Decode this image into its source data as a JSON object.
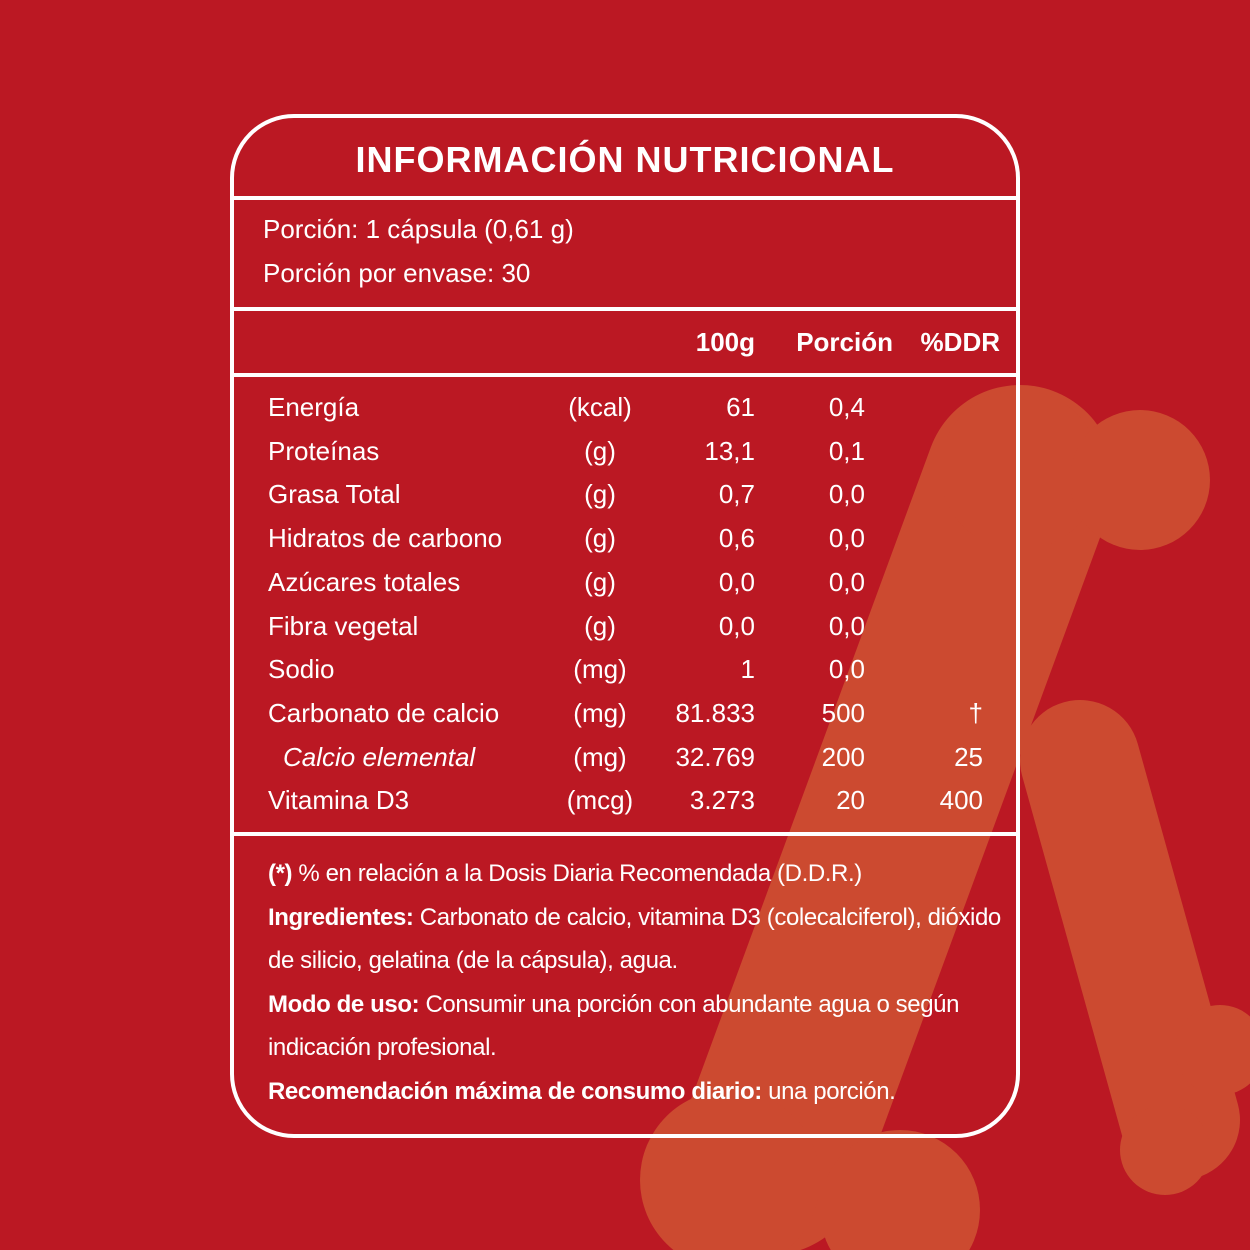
{
  "header": {
    "title": "INFORMACIÓN NUTRICIONAL"
  },
  "serving": {
    "lines": [
      "Porción: 1 cápsula (0,61 g)",
      "Porción por envase: 30"
    ]
  },
  "table": {
    "columns": [
      "100g",
      "Porción",
      "%DDR"
    ],
    "rows": [
      {
        "name": "Energía",
        "unit": "(kcal)",
        "per100g": "61",
        "portion": "0,4"
      },
      {
        "name": "Proteínas",
        "unit": "(g)",
        "per100g": "13,1",
        "portion": "0,1"
      },
      {
        "name": "Grasa Total",
        "unit": "(g)",
        "per100g": "0,7",
        "portion": "0,0"
      },
      {
        "name": "Hidratos de carbono",
        "unit": "(g)",
        "per100g": "0,6",
        "portion": "0,0"
      },
      {
        "name": "Azúcares totales",
        "unit": "(g)",
        "per100g": "0,0",
        "portion": "0,0"
      },
      {
        "name": "Fibra vegetal",
        "unit": "(g)",
        "per100g": "0,0",
        "portion": "0,0"
      },
      {
        "name": "Sodio",
        "unit": "(mg)",
        "per100g": "1",
        "portion": "0,0"
      },
      {
        "name": "Carbonato de calcio",
        "unit": "(mg)",
        "per100g": "81.833",
        "portion": "500",
        "ddr": "†"
      },
      {
        "name": "Calcio elemental",
        "unit": "(mg)",
        "per100g": "32.769",
        "portion": "200",
        "ddr": "25",
        "italic": true
      },
      {
        "name": "Vitamina D3",
        "unit": "(mcg)",
        "per100g": "3.273",
        "portion": "20",
        "ddr": "400"
      }
    ]
  },
  "notes": [
    {
      "label": "(*)",
      "text": "% en relación a la Dosis Diaria Recomendada (D.D.R.)"
    },
    {
      "label": "Ingredientes:",
      "text": "Carbonato de calcio, vitamina D3 (colecalciferol), dióxido de silicio, gelatina (de la cápsula), agua."
    },
    {
      "label": "Modo de uso:",
      "text": "Consumir una porción con abundante agua o según indicación profesional."
    },
    {
      "label": "Recomendación máxima de consumo diario:",
      "text": "una porción."
    }
  ]
}
